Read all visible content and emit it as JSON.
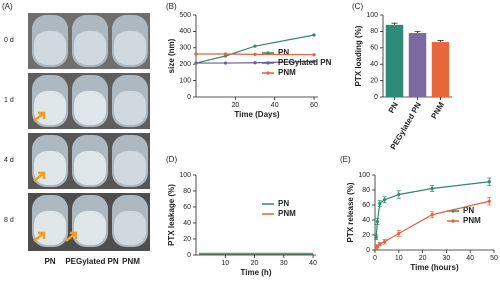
{
  "photo_panel": {
    "label": "(A)",
    "rows": [
      "0 d",
      "1 d",
      "4 d",
      "8 d"
    ],
    "columns": [
      "PN",
      "PEGylated PN",
      "PNM"
    ]
  },
  "chart_data": [
    {
      "type": "line",
      "panel_label": "(B)",
      "x_label": "Time (Days)",
      "y_label": "size (nm)",
      "xlim": [
        0,
        62
      ],
      "xticks": [
        20,
        40,
        60
      ],
      "ylim": [
        0,
        500
      ],
      "yticks": [
        0,
        100,
        200,
        300,
        400,
        500
      ],
      "series": [
        {
          "name": "PN",
          "color": "#2e8b67",
          "x": [
            0,
            15,
            30,
            60
          ],
          "values": [
            207,
            250,
            310,
            378
          ]
        },
        {
          "name": "PEGylated PN",
          "color": "#6b5b9e",
          "x": [
            0,
            15,
            30,
            60
          ],
          "values": [
            207,
            207,
            209,
            218
          ]
        },
        {
          "name": "PNM",
          "color": "#e8603c",
          "x": [
            0,
            15,
            30,
            60
          ],
          "values": [
            262,
            262,
            260,
            258
          ]
        }
      ]
    },
    {
      "type": "bar",
      "panel_label": "(C)",
      "y_label": "PTX loading (%)",
      "ylim": [
        0,
        100
      ],
      "yticks": [
        0,
        20,
        40,
        60,
        80,
        100
      ],
      "categories": [
        "PN",
        "PEGylated PN",
        "PNM"
      ],
      "values": [
        88,
        78,
        67
      ],
      "errors": [
        2,
        2,
        2
      ],
      "colors": [
        "#2f8a78",
        "#7a6aa0",
        "#e8663c"
      ]
    },
    {
      "type": "line",
      "panel_label": "(D)",
      "x_label": "Time (h)",
      "y_label": "PTX leakage (%)",
      "xlim": [
        0,
        41
      ],
      "xticks": [
        10,
        20,
        30,
        40
      ],
      "ylim": [
        0,
        100
      ],
      "yticks": [
        0,
        20,
        40,
        60,
        80,
        100
      ],
      "series": [
        {
          "name": "PN",
          "color": "#2e8b67",
          "x": [
            1,
            2,
            4,
            8,
            12,
            24,
            40
          ],
          "values": [
            1,
            1,
            1,
            1,
            1,
            1,
            1
          ]
        },
        {
          "name": "PNM",
          "color": "#e8603c",
          "x": [
            1,
            2,
            4,
            8,
            12,
            24,
            40
          ],
          "values": [
            2,
            2,
            2,
            2,
            2,
            2,
            2
          ]
        }
      ]
    },
    {
      "type": "line",
      "panel_label": "(E)",
      "x_label": "Time (hours)",
      "y_label": "PTX release (%)",
      "xlim": [
        0,
        50
      ],
      "xticks": [
        0,
        10,
        20,
        30,
        40,
        50
      ],
      "ylim": [
        0,
        100
      ],
      "yticks": [
        0,
        20,
        40,
        60,
        80,
        100
      ],
      "series": [
        {
          "name": "PN",
          "color": "#2e8b67",
          "x": [
            0.5,
            1,
            2,
            4,
            10,
            24,
            48
          ],
          "values": [
            17,
            38,
            62,
            67,
            74,
            82,
            91
          ],
          "errors": [
            3,
            4,
            4,
            4,
            5,
            4,
            5
          ]
        },
        {
          "name": "PNM",
          "color": "#e8603c",
          "x": [
            0.5,
            1,
            2,
            4,
            10,
            24,
            48
          ],
          "values": [
            2,
            5,
            8,
            11,
            22,
            47,
            65
          ],
          "errors": [
            1,
            2,
            2,
            3,
            4,
            4,
            5
          ]
        }
      ]
    }
  ]
}
